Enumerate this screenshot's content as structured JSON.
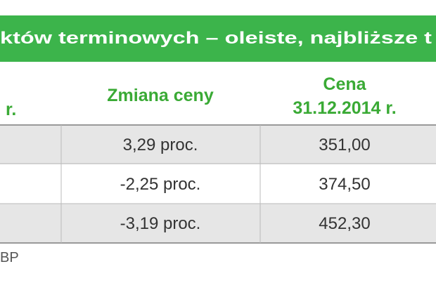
{
  "title": "któw terminowych – oleiste, najbliższe t",
  "table": {
    "header": [
      "r.",
      "Zmiana ceny",
      [
        "Cena",
        "31.12.2014 r."
      ]
    ],
    "rows": [
      [
        "3,29 proc.",
        "351,00"
      ],
      [
        "-2,25 proc.",
        "374,50"
      ],
      [
        "-3,19 proc.",
        "452,30"
      ]
    ]
  },
  "footer": "BP"
}
